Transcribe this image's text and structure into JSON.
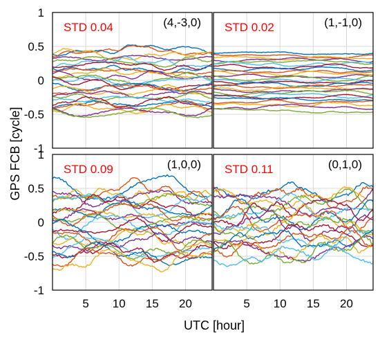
{
  "chart_data": {
    "type": "line",
    "xlabel": "UTC [hour]",
    "ylabel": "GPS FCB [cycle]",
    "xlim": [
      0,
      24
    ],
    "ylim": [
      -1,
      1
    ],
    "xticks": [
      "5",
      "10",
      "15",
      "20"
    ],
    "yticks": [
      "1",
      "0.5",
      "0",
      "-0.5",
      "-1"
    ],
    "grid": true,
    "colors": [
      "#0072bd",
      "#d95319",
      "#edb120",
      "#7e2f8e",
      "#77ac30",
      "#4dbeee",
      "#a2142f"
    ],
    "panels": [
      {
        "combination": "(4,-3,0)",
        "std_label": "STD 0.04",
        "std": 0.04,
        "levels": [
          0.45,
          0.42,
          0.38,
          0.33,
          0.28,
          0.25,
          0.22,
          0.18,
          0.14,
          0.1,
          0.06,
          0.02,
          -0.02,
          -0.05,
          -0.09,
          -0.13,
          -0.16,
          -0.2,
          -0.24,
          -0.28,
          -0.32,
          -0.35,
          -0.38,
          -0.42,
          -0.46,
          -0.48
        ]
      },
      {
        "combination": "(1,-1,0)",
        "std_label": "STD 0.02",
        "std": 0.02,
        "levels": [
          0.4,
          0.36,
          0.33,
          0.3,
          0.27,
          0.24,
          0.2,
          0.17,
          0.13,
          0.1,
          0.06,
          0.03,
          0.0,
          -0.03,
          -0.06,
          -0.09,
          -0.12,
          -0.15,
          -0.18,
          -0.22,
          -0.25,
          -0.28,
          -0.32,
          -0.36,
          -0.4,
          -0.45
        ]
      },
      {
        "combination": "(1,0,0)",
        "std_label": "STD 0.09",
        "std": 0.09,
        "levels": [
          0.5,
          0.45,
          0.4,
          0.36,
          0.32,
          0.28,
          0.24,
          0.2,
          0.15,
          0.1,
          0.05,
          0.0,
          -0.05,
          -0.1,
          -0.15,
          -0.2,
          -0.25,
          -0.3,
          -0.35,
          -0.4,
          -0.44,
          -0.48,
          -0.52,
          -0.56
        ]
      },
      {
        "combination": "(0,1,0)",
        "std_label": "STD 0.11",
        "std": 0.11,
        "levels": [
          0.45,
          0.4,
          0.35,
          0.3,
          0.25,
          0.2,
          0.15,
          0.1,
          0.05,
          0.0,
          -0.05,
          -0.1,
          -0.15,
          -0.2,
          -0.25,
          -0.3,
          -0.35,
          -0.4,
          -0.45,
          -0.5
        ]
      }
    ]
  }
}
